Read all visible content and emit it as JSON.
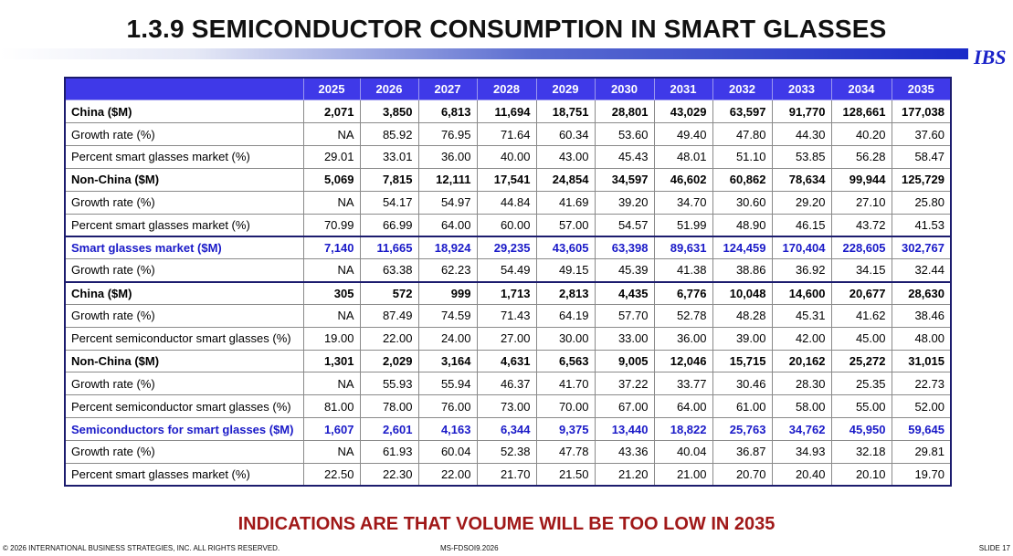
{
  "title": "1.3.9  SEMICONDUCTOR CONSUMPTION IN SMART GLASSES",
  "logo": "IBS",
  "years": [
    "2025",
    "2026",
    "2027",
    "2028",
    "2029",
    "2030",
    "2031",
    "2032",
    "2033",
    "2034",
    "2035"
  ],
  "rows": [
    {
      "label": "China ($M)",
      "style": "bold",
      "values": [
        "2,071",
        "3,850",
        "6,813",
        "11,694",
        "18,751",
        "28,801",
        "43,029",
        "63,597",
        "91,770",
        "128,661",
        "177,038"
      ]
    },
    {
      "label": "Growth rate (%)",
      "style": "",
      "values": [
        "NA",
        "85.92",
        "76.95",
        "71.64",
        "60.34",
        "53.60",
        "49.40",
        "47.80",
        "44.30",
        "40.20",
        "37.60"
      ]
    },
    {
      "label": "Percent smart glasses market (%)",
      "style": "",
      "values": [
        "29.01",
        "33.01",
        "36.00",
        "40.00",
        "43.00",
        "45.43",
        "48.01",
        "51.10",
        "53.85",
        "56.28",
        "58.47"
      ]
    },
    {
      "label": "Non-China ($M)",
      "style": "bold",
      "values": [
        "5,069",
        "7,815",
        "12,111",
        "17,541",
        "24,854",
        "34,597",
        "46,602",
        "60,862",
        "78,634",
        "99,944",
        "125,729"
      ]
    },
    {
      "label": "Growth rate (%)",
      "style": "",
      "values": [
        "NA",
        "54.17",
        "54.97",
        "44.84",
        "41.69",
        "39.20",
        "34.70",
        "30.60",
        "29.20",
        "27.10",
        "25.80"
      ]
    },
    {
      "label": "Percent smart glasses market (%)",
      "style": "",
      "values": [
        "70.99",
        "66.99",
        "64.00",
        "60.00",
        "57.00",
        "54.57",
        "51.99",
        "48.90",
        "46.15",
        "43.72",
        "41.53"
      ]
    },
    {
      "label": "Smart glasses market ($M)",
      "style": "blue",
      "values": [
        "7,140",
        "11,665",
        "18,924",
        "29,235",
        "43,605",
        "63,398",
        "89,631",
        "124,459",
        "170,404",
        "228,605",
        "302,767"
      ]
    },
    {
      "label": "Growth rate (%)",
      "style": "",
      "values": [
        "NA",
        "63.38",
        "62.23",
        "54.49",
        "49.15",
        "45.39",
        "41.38",
        "38.86",
        "36.92",
        "34.15",
        "32.44"
      ]
    },
    {
      "label": "China ($M)",
      "style": "bold",
      "values": [
        "305",
        "572",
        "999",
        "1,713",
        "2,813",
        "4,435",
        "6,776",
        "10,048",
        "14,600",
        "20,677",
        "28,630"
      ]
    },
    {
      "label": "Growth rate (%)",
      "style": "",
      "values": [
        "NA",
        "87.49",
        "74.59",
        "71.43",
        "64.19",
        "57.70",
        "52.78",
        "48.28",
        "45.31",
        "41.62",
        "38.46"
      ]
    },
    {
      "label": "Percent semiconductor smart glasses (%)",
      "style": "",
      "values": [
        "19.00",
        "22.00",
        "24.00",
        "27.00",
        "30.00",
        "33.00",
        "36.00",
        "39.00",
        "42.00",
        "45.00",
        "48.00"
      ]
    },
    {
      "label": "Non-China ($M)",
      "style": "bold",
      "values": [
        "1,301",
        "2,029",
        "3,164",
        "4,631",
        "6,563",
        "9,005",
        "12,046",
        "15,715",
        "20,162",
        "25,272",
        "31,015"
      ]
    },
    {
      "label": "Growth rate (%)",
      "style": "",
      "values": [
        "NA",
        "55.93",
        "55.94",
        "46.37",
        "41.70",
        "37.22",
        "33.77",
        "30.46",
        "28.30",
        "25.35",
        "22.73"
      ]
    },
    {
      "label": "Percent semiconductor smart glasses (%)",
      "style": "",
      "values": [
        "81.00",
        "78.00",
        "76.00",
        "73.00",
        "70.00",
        "67.00",
        "64.00",
        "61.00",
        "58.00",
        "55.00",
        "52.00"
      ]
    },
    {
      "label": "Semiconductors for smart glasses ($M)",
      "style": "blue",
      "values": [
        "1,607",
        "2,601",
        "4,163",
        "6,344",
        "9,375",
        "13,440",
        "18,822",
        "25,763",
        "34,762",
        "45,950",
        "59,645"
      ]
    },
    {
      "label": "Growth rate (%)",
      "style": "",
      "values": [
        "NA",
        "61.93",
        "60.04",
        "52.38",
        "47.78",
        "43.36",
        "40.04",
        "36.87",
        "34.93",
        "32.18",
        "29.81"
      ]
    },
    {
      "label": "Percent smart glasses market (%)",
      "style": "",
      "values": [
        "22.50",
        "22.30",
        "22.00",
        "21.70",
        "21.50",
        "21.20",
        "21.00",
        "20.70",
        "20.40",
        "20.10",
        "19.70"
      ]
    }
  ],
  "headline": "INDICATIONS ARE THAT VOLUME WILL BE TOO LOW IN 2035",
  "footer": {
    "copyright": "© 2026 INTERNATIONAL BUSINESS STRATEGIES, INC. ALL RIGHTS RESERVED.",
    "doc_id": "MS-FDSOI9.2026",
    "slide": "SLIDE 17"
  },
  "colors": {
    "header_bg": "#3f39e8",
    "blue_text": "#1a1ac8",
    "headline": "#a01818",
    "logo": "#1a22c8"
  }
}
